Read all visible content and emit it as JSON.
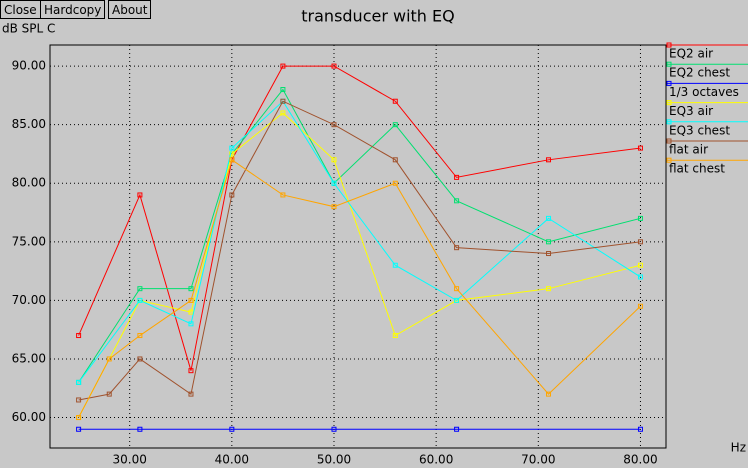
{
  "ui": {
    "buttons": [
      "Close",
      "Hardcopy",
      "About"
    ]
  },
  "chart_data": {
    "type": "line",
    "title": "transducer with EQ",
    "y_label": "dB SPL C",
    "x_label": "Hz",
    "xlim": [
      22.2,
      82.5
    ],
    "ylim": [
      57.4,
      91.8
    ],
    "xticks": [
      {
        "value": 30,
        "label": "30.00"
      },
      {
        "value": 40,
        "label": "40.00"
      },
      {
        "value": 50,
        "label": "50.00"
      },
      {
        "value": 60,
        "label": "60.00"
      },
      {
        "value": 70,
        "label": "70.00"
      },
      {
        "value": 80,
        "label": "80.00"
      }
    ],
    "yticks": [
      {
        "value": 60,
        "label": "60.00"
      },
      {
        "value": 65,
        "label": "65.00"
      },
      {
        "value": 70,
        "label": "70.00"
      },
      {
        "value": 75,
        "label": "75.00"
      },
      {
        "value": 80,
        "label": "80.00"
      },
      {
        "value": 85,
        "label": "85.00"
      },
      {
        "value": 90,
        "label": "90.00"
      }
    ],
    "grid": true,
    "series": [
      {
        "name": "EQ2 air",
        "color": "#ff0000",
        "x": [
          25,
          31,
          36,
          40,
          45,
          50,
          56,
          62,
          71,
          80
        ],
        "values": [
          67,
          79,
          64,
          82,
          90,
          90,
          87,
          80.5,
          82,
          83
        ]
      },
      {
        "name": "EQ2 chest",
        "color": "#00e070",
        "x": [
          25,
          31,
          36,
          40,
          45,
          50,
          56,
          62,
          71,
          80
        ],
        "values": [
          63,
          71,
          71,
          82.5,
          88,
          80,
          85,
          78.5,
          75,
          77
        ]
      },
      {
        "name": "1/3 octaves",
        "color": "#0000ff",
        "x": [
          25,
          31,
          40,
          50,
          62,
          80
        ],
        "values": [
          59,
          59,
          59,
          59,
          59,
          59
        ]
      },
      {
        "name": "EQ3 air",
        "color": "#ffff00",
        "x": [
          25,
          31,
          36,
          40,
          45,
          50,
          56,
          62,
          71,
          80
        ],
        "values": [
          60,
          70,
          69,
          82.5,
          86,
          82,
          67,
          70,
          71,
          73
        ]
      },
      {
        "name": "EQ3 chest",
        "color": "#00ffff",
        "x": [
          25,
          31,
          36,
          40,
          45,
          50,
          56,
          62,
          71,
          80
        ],
        "values": [
          63,
          70,
          68,
          83,
          87,
          80,
          73,
          70,
          77,
          72
        ]
      },
      {
        "name": "flat air",
        "color": "#a0522d",
        "x": [
          25,
          28,
          31,
          36,
          40,
          45,
          50,
          56,
          62,
          71,
          80
        ],
        "values": [
          61.5,
          62,
          65,
          62,
          79,
          87,
          85,
          82,
          74.5,
          74,
          75
        ]
      },
      {
        "name": "flat chest",
        "color": "#ffa500",
        "x": [
          25,
          28,
          31,
          36,
          40,
          45,
          50,
          56,
          62,
          71,
          80
        ],
        "values": [
          60,
          65,
          67,
          70,
          82,
          79,
          78,
          80,
          71,
          62,
          69.5
        ]
      }
    ]
  }
}
